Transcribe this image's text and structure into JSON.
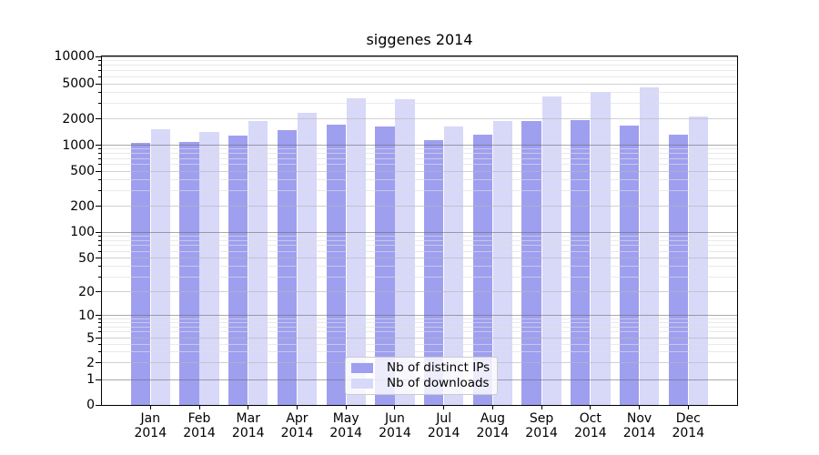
{
  "chart_data": {
    "type": "bar",
    "title": "siggenes 2014",
    "categories": [
      "Jan",
      "Feb",
      "Mar",
      "Apr",
      "May",
      "Jun",
      "Jul",
      "Aug",
      "Sep",
      "Oct",
      "Nov",
      "Dec"
    ],
    "category_year": "2014",
    "series": [
      {
        "name": "Nb of distinct IPs",
        "color": "#9f9ff0",
        "values": [
          1050,
          1090,
          1300,
          1500,
          1700,
          1620,
          1130,
          1330,
          1870,
          1930,
          1690,
          1330
        ]
      },
      {
        "name": "Nb of downloads",
        "color": "#d8d8f9",
        "values": [
          1530,
          1400,
          1870,
          2330,
          3400,
          3350,
          1620,
          1870,
          3580,
          4000,
          4580,
          2100
        ]
      }
    ],
    "y_tick_labels": [
      "10000",
      "5000",
      "2000",
      "1000",
      "500",
      "200",
      "100",
      "50",
      "20",
      "10",
      "5",
      "2",
      "1",
      "0"
    ],
    "ylim": [
      0,
      10000
    ],
    "yscale": "log-with-zero",
    "grid": true,
    "legend_position": "bottom-center"
  }
}
